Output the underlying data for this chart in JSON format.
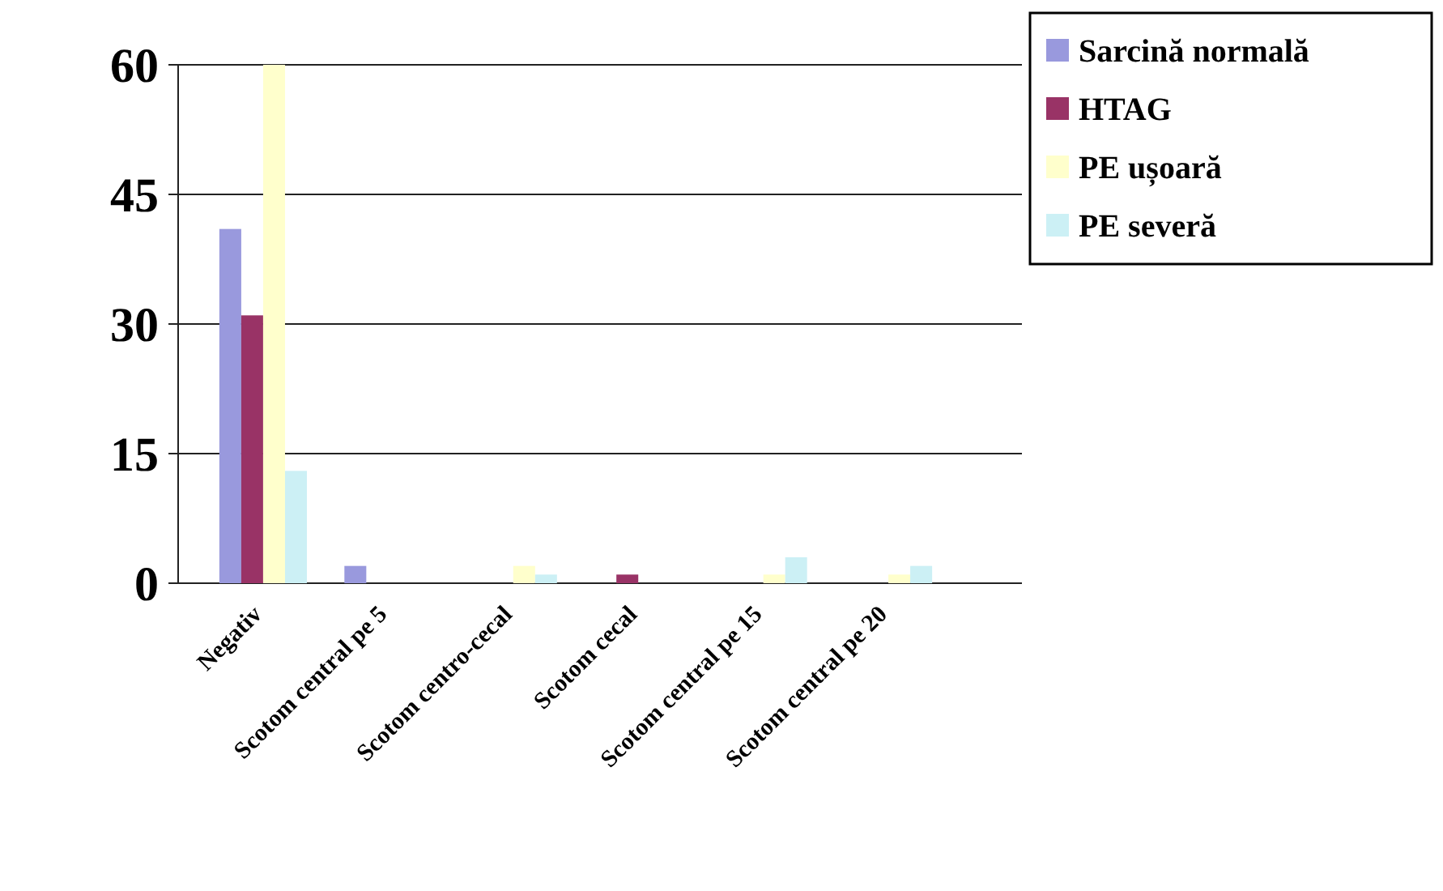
{
  "chart_data": {
    "type": "bar",
    "categories": [
      "Negativ",
      "Scotom central pe 5",
      "Scotom centro-cecal",
      "Scotom cecal",
      "Scotom central pe 15",
      "Scotom central pe 20"
    ],
    "series": [
      {
        "name": "Sarcină normală",
        "color": "#9999dd",
        "values": [
          41,
          2,
          0,
          0,
          0,
          0
        ]
      },
      {
        "name": "HTAG",
        "color": "#993366",
        "values": [
          31,
          0,
          0,
          1,
          0,
          0
        ]
      },
      {
        "name": "PE ușoară",
        "color": "#ffffcc",
        "values": [
          60,
          0,
          2,
          0,
          1,
          1
        ]
      },
      {
        "name": "PE severă",
        "color": "#ccf0f5",
        "values": [
          13,
          0,
          1,
          0,
          3,
          2
        ]
      }
    ],
    "ylim": [
      0,
      60
    ],
    "yticks": [
      0,
      15,
      30,
      45,
      60
    ],
    "grid": "y",
    "legend": "top right"
  }
}
